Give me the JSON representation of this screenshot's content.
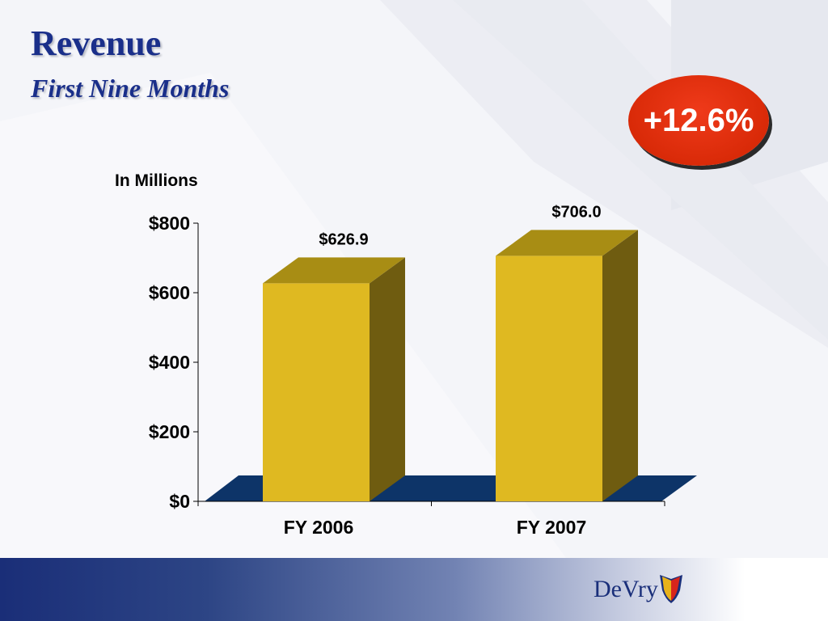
{
  "slide": {
    "title": "Revenue",
    "subtitle": "First Nine Months",
    "unit_label": "In Millions",
    "growth_badge": "+12.6%",
    "brand": "DeVry"
  },
  "colors": {
    "bar_front": "#dfb921",
    "bar_top": "#a88d14",
    "bar_side": "#6f5c10",
    "floor": "#0d3468",
    "title": "#1a2f8a",
    "badge": "#d92a08"
  },
  "chart_data": {
    "type": "bar",
    "categories": [
      "FY 2006",
      "FY 2007"
    ],
    "values": [
      626.9,
      706.0
    ],
    "value_labels": [
      "$626.9",
      "$706.0"
    ],
    "ylim": [
      0,
      800
    ],
    "yticks": [
      0,
      200,
      400,
      600,
      800
    ],
    "ytick_labels": [
      "$0",
      "$200",
      "$400",
      "$600",
      "$800"
    ],
    "style": "3d",
    "grid": false
  }
}
